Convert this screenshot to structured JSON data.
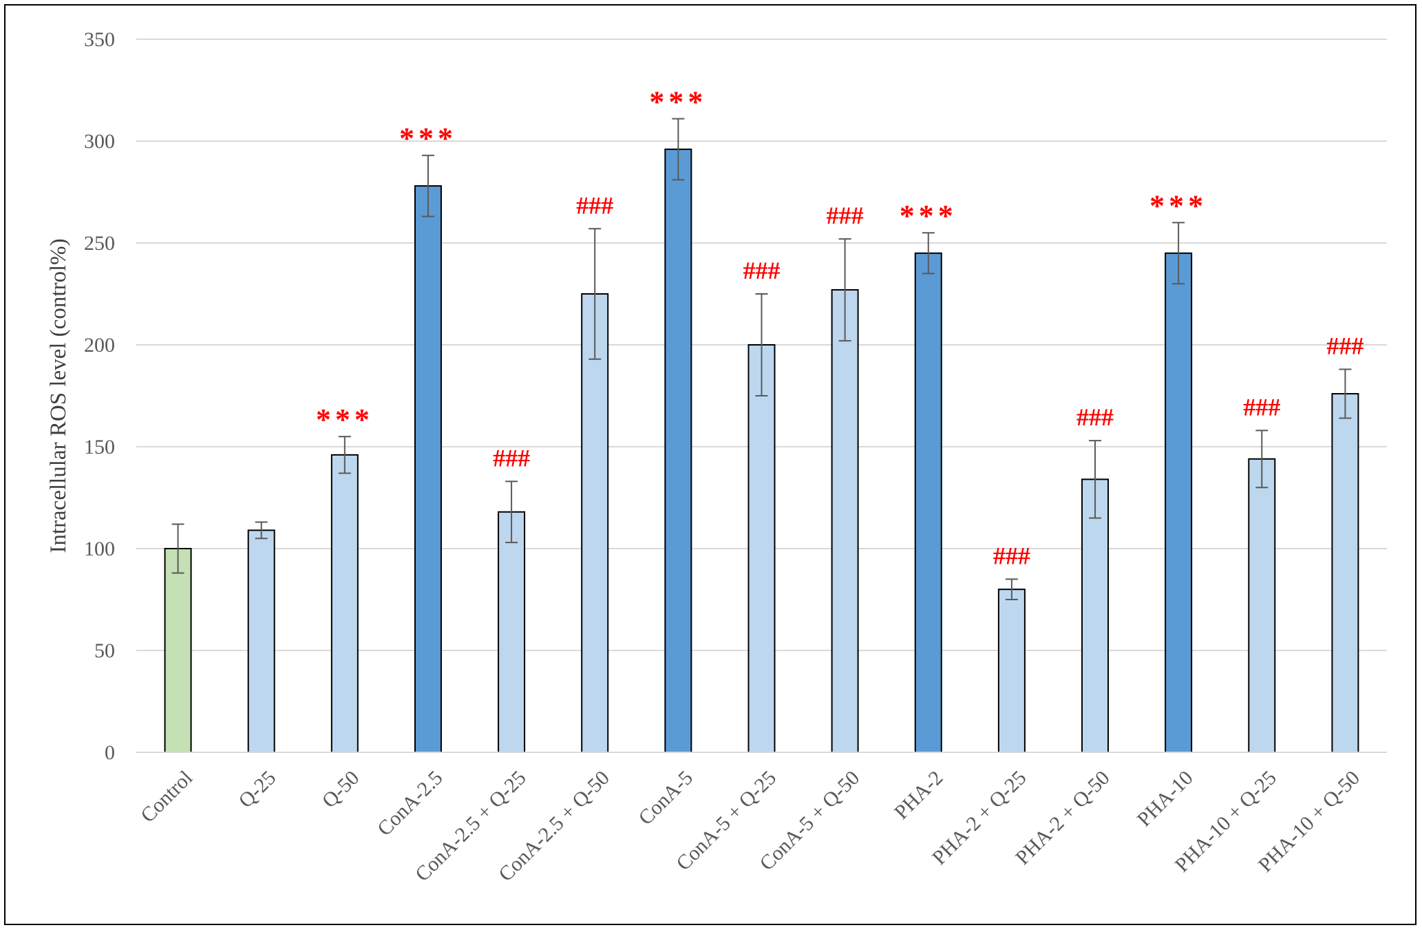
{
  "chart_data": {
    "type": "bar",
    "title": "",
    "xlabel": "",
    "ylabel": "Intracellular ROS level (control%)",
    "ylim": [
      0,
      350
    ],
    "yticks": [
      0,
      50,
      100,
      150,
      200,
      250,
      300,
      350
    ],
    "grid": true,
    "legend": "none",
    "categories": [
      "Control",
      "Q-25",
      "Q-50",
      "ConA-2.5",
      "ConA-2.5 + Q-25",
      "ConA-2.5 + Q-50",
      "ConA-5",
      "ConA-5 + Q-25",
      "ConA-5 + Q-50",
      "PHA-2",
      "PHA-2 + Q-25",
      "PHA-2 + Q-50",
      "PHA-10",
      "PHA-10 + Q-25",
      "PHA-10 + Q-50"
    ],
    "values": [
      100,
      109,
      146,
      278,
      118,
      225,
      296,
      200,
      227,
      245,
      80,
      134,
      245,
      144,
      176
    ],
    "errors": [
      12,
      4,
      9,
      15,
      15,
      32,
      15,
      25,
      25,
      10,
      5,
      19,
      15,
      14,
      12
    ],
    "annotations": [
      "",
      "",
      "***",
      "***",
      "###",
      "###",
      "***",
      "###",
      "###",
      "***",
      "###",
      "###",
      "***",
      "###",
      "###"
    ],
    "bar_groups": [
      "control",
      "treatment",
      "treatment",
      "mitogen",
      "treatment",
      "treatment",
      "mitogen",
      "treatment",
      "treatment",
      "mitogen",
      "treatment",
      "treatment",
      "mitogen",
      "treatment",
      "treatment"
    ],
    "colors": {
      "control": "#c5e0b4",
      "treatment": "#bdd7ee",
      "mitogen": "#5b9bd5",
      "annotation": "#ff0000",
      "gridline": "#d9d9d9",
      "error_bar": "#595959"
    }
  }
}
